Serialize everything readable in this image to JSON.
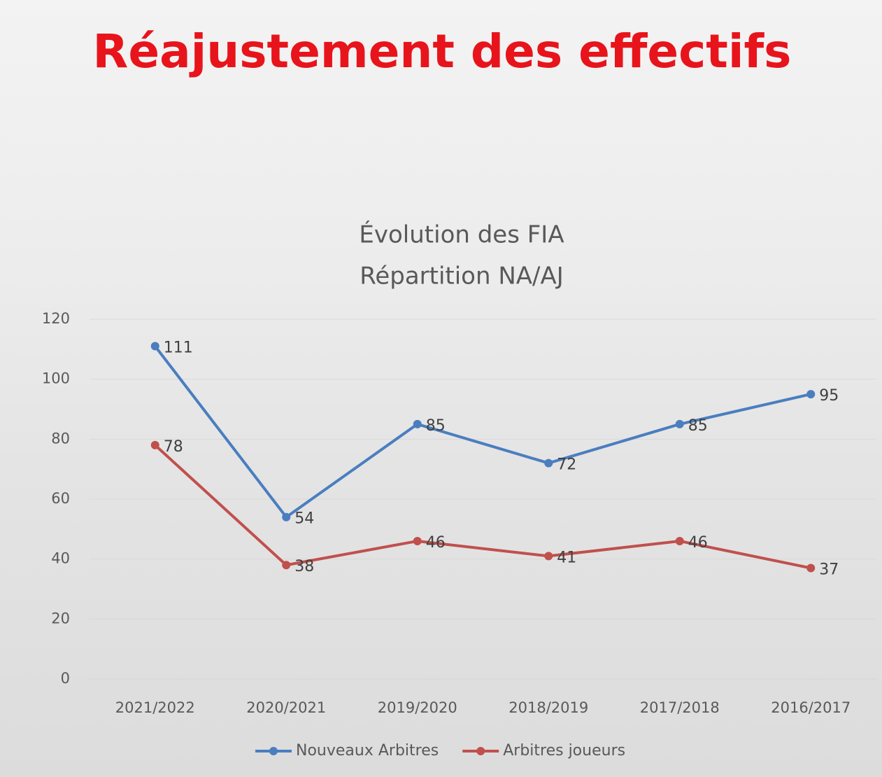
{
  "heading": "Réajustement des effectifs",
  "chart_data": {
    "type": "line",
    "title": "Évolution des FIA",
    "subtitle": "Répartition NA/AJ",
    "categories": [
      "2021/2022",
      "2020/2021",
      "2019/2020",
      "2018/2019",
      "2017/2018",
      "2016/2017"
    ],
    "series": [
      {
        "name": "Nouveaux Arbitres",
        "color": "#4a7ebf",
        "values": [
          111,
          54,
          85,
          72,
          85,
          95
        ]
      },
      {
        "name": "Arbitres joueurs",
        "color": "#c0504d",
        "values": [
          78,
          38,
          46,
          41,
          46,
          37
        ]
      }
    ],
    "ylim": [
      0,
      120
    ],
    "yticks": [
      0,
      20,
      40,
      60,
      80,
      100,
      120
    ],
    "grid": true,
    "legend": "bottom"
  }
}
